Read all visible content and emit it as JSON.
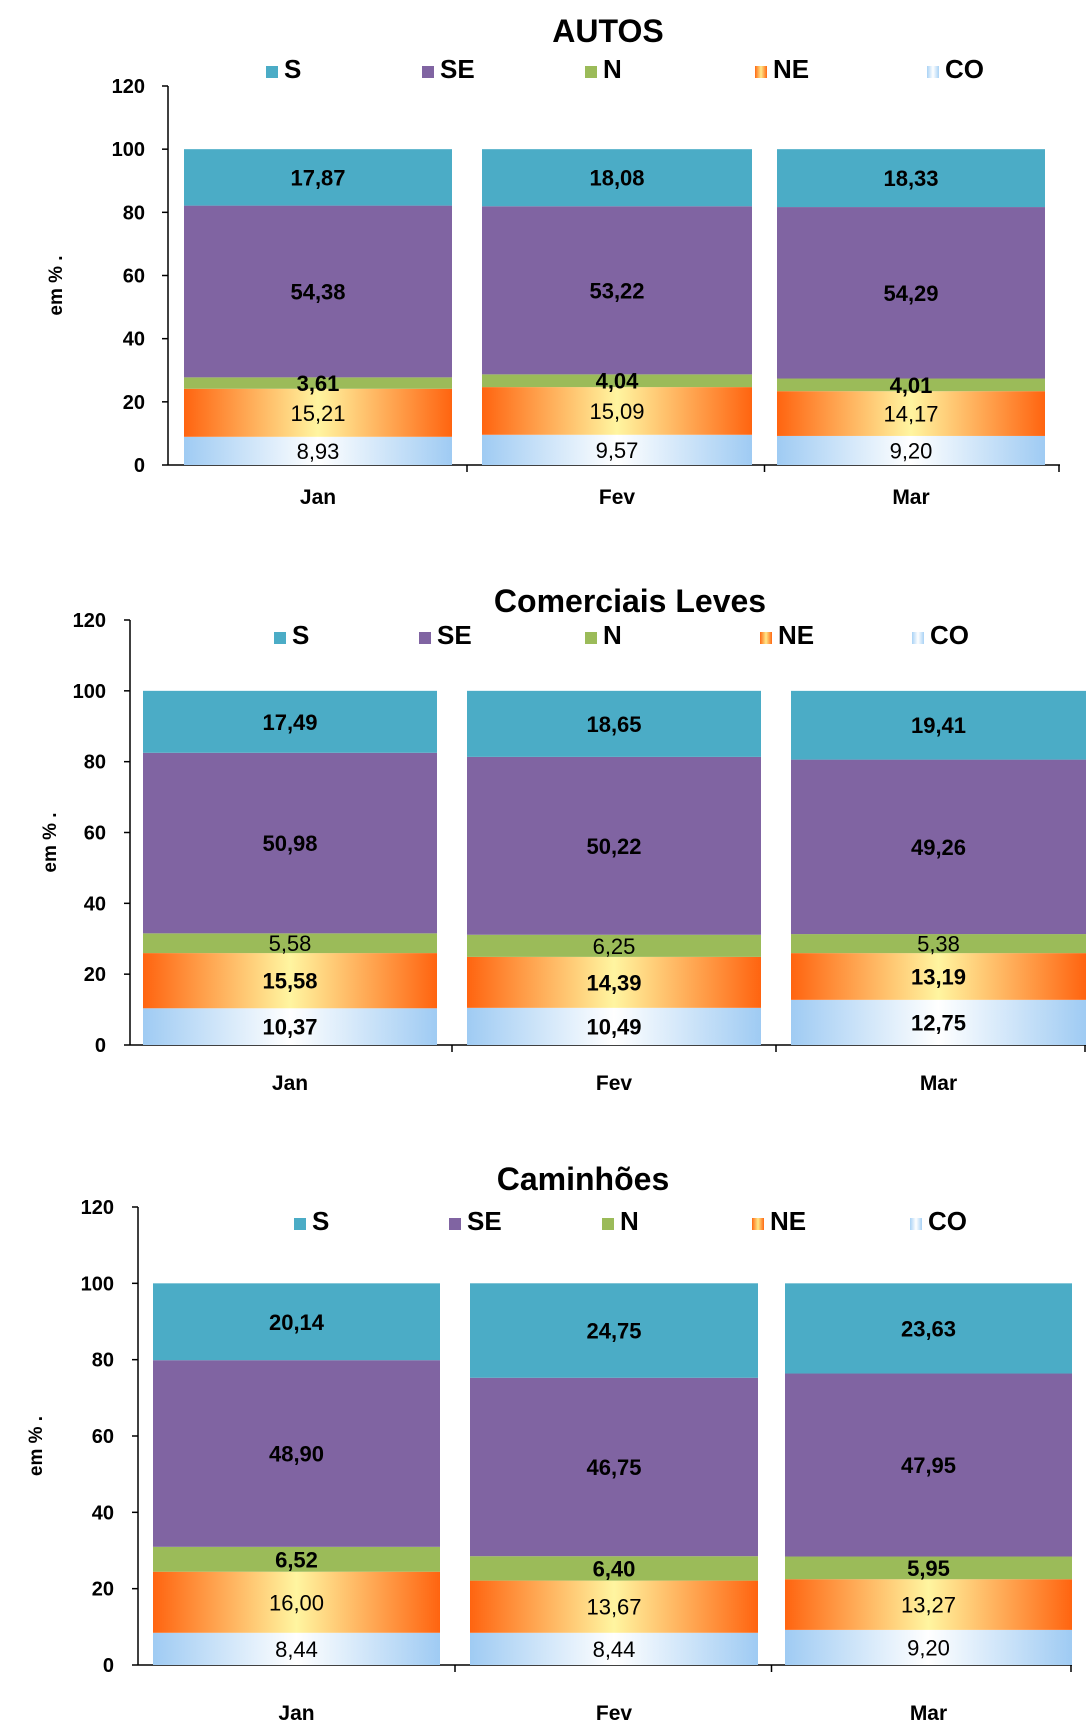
{
  "chart_data": [
    {
      "type": "bar",
      "stacked": true,
      "title": "AUTOS",
      "ylabel": "em %   .",
      "ylim": [
        0,
        120
      ],
      "yticks": [
        0,
        20,
        40,
        60,
        80,
        100,
        120
      ],
      "categories": [
        "Jan",
        "Fev",
        "Mar"
      ],
      "legend_position": "top",
      "series": [
        {
          "name": "CO",
          "values": [
            8.93,
            9.57,
            9.2
          ],
          "labels": [
            "8,93",
            "9,57",
            "9,20"
          ],
          "color": "#a9d2f5",
          "label_bold": [
            false,
            false,
            false
          ]
        },
        {
          "name": "NE",
          "values": [
            15.21,
            15.09,
            14.17
          ],
          "labels": [
            "15,21",
            "15,09",
            "14,17"
          ],
          "color": "#ff6a13",
          "label_bold": [
            false,
            false,
            false
          ]
        },
        {
          "name": "N",
          "values": [
            3.61,
            4.04,
            4.01
          ],
          "labels": [
            "3,61",
            "4,04",
            "4,01"
          ],
          "color": "#9bbb59",
          "label_bold": [
            true,
            true,
            true
          ]
        },
        {
          "name": "SE",
          "values": [
            54.38,
            53.22,
            54.29
          ],
          "labels": [
            "54,38",
            "53,22",
            "54,29"
          ],
          "color": "#8064a2",
          "label_bold": [
            true,
            true,
            true
          ]
        },
        {
          "name": "S",
          "values": [
            17.87,
            18.08,
            18.33
          ],
          "labels": [
            "17,87",
            "18,08",
            "18,33"
          ],
          "color": "#4bacc6",
          "label_bold": [
            true,
            true,
            true
          ]
        }
      ],
      "legend_order": [
        "S",
        "SE",
        "N",
        "NE",
        "CO"
      ]
    },
    {
      "type": "bar",
      "stacked": true,
      "title": "Comerciais Leves",
      "ylabel": "em %   .",
      "ylim": [
        0,
        120
      ],
      "yticks": [
        0,
        20,
        40,
        60,
        80,
        100,
        120
      ],
      "categories": [
        "Jan",
        "Fev",
        "Mar"
      ],
      "legend_position": "top",
      "series": [
        {
          "name": "CO",
          "values": [
            10.37,
            10.49,
            12.75
          ],
          "labels": [
            "10,37",
            "10,49",
            "12,75"
          ],
          "color": "#a9d2f5",
          "label_bold": [
            true,
            true,
            true
          ]
        },
        {
          "name": "NE",
          "values": [
            15.58,
            14.39,
            13.19
          ],
          "labels": [
            "15,58",
            "14,39",
            "13,19"
          ],
          "color": "#ff6a13",
          "label_bold": [
            true,
            true,
            true
          ]
        },
        {
          "name": "N",
          "values": [
            5.58,
            6.25,
            5.38
          ],
          "labels": [
            "5,58",
            "6,25",
            "5,38"
          ],
          "color": "#9bbb59",
          "label_bold": [
            false,
            false,
            false
          ]
        },
        {
          "name": "SE",
          "values": [
            50.98,
            50.22,
            49.26
          ],
          "labels": [
            "50,98",
            "50,22",
            "49,26"
          ],
          "color": "#8064a2",
          "label_bold": [
            true,
            true,
            true
          ]
        },
        {
          "name": "S",
          "values": [
            17.49,
            18.65,
            19.41
          ],
          "labels": [
            "17,49",
            "18,65",
            "19,41"
          ],
          "color": "#4bacc6",
          "label_bold": [
            true,
            true,
            true
          ]
        }
      ],
      "legend_order": [
        "S",
        "SE",
        "N",
        "NE",
        "CO"
      ]
    },
    {
      "type": "bar",
      "stacked": true,
      "title": "Caminhões",
      "ylabel": "em %   .",
      "ylim": [
        0,
        120
      ],
      "yticks": [
        0,
        20,
        40,
        60,
        80,
        100,
        120
      ],
      "categories": [
        "Jan",
        "Fev",
        "Mar"
      ],
      "legend_position": "top",
      "series": [
        {
          "name": "CO",
          "values": [
            8.44,
            8.44,
            9.2
          ],
          "labels": [
            "8,44",
            "8,44",
            "9,20"
          ],
          "color": "#a9d2f5",
          "label_bold": [
            false,
            false,
            false
          ]
        },
        {
          "name": "NE",
          "values": [
            16.0,
            13.67,
            13.27
          ],
          "labels": [
            "16,00",
            "13,67",
            "13,27"
          ],
          "color": "#ff6a13",
          "label_bold": [
            false,
            false,
            false
          ]
        },
        {
          "name": "N",
          "values": [
            6.52,
            6.4,
            5.95
          ],
          "labels": [
            "6,52",
            "6,40",
            "5,95"
          ],
          "color": "#9bbb59",
          "label_bold": [
            true,
            true,
            true
          ]
        },
        {
          "name": "SE",
          "values": [
            48.9,
            46.75,
            47.95
          ],
          "labels": [
            "48,90",
            "46,75",
            "47,95"
          ],
          "color": "#8064a2",
          "label_bold": [
            true,
            true,
            true
          ]
        },
        {
          "name": "S",
          "values": [
            20.14,
            24.75,
            23.63
          ],
          "labels": [
            "20,14",
            "24,75",
            "23,63"
          ],
          "color": "#4bacc6",
          "label_bold": [
            true,
            true,
            true
          ]
        }
      ],
      "legend_order": [
        "S",
        "SE",
        "N",
        "NE",
        "CO"
      ]
    }
  ]
}
